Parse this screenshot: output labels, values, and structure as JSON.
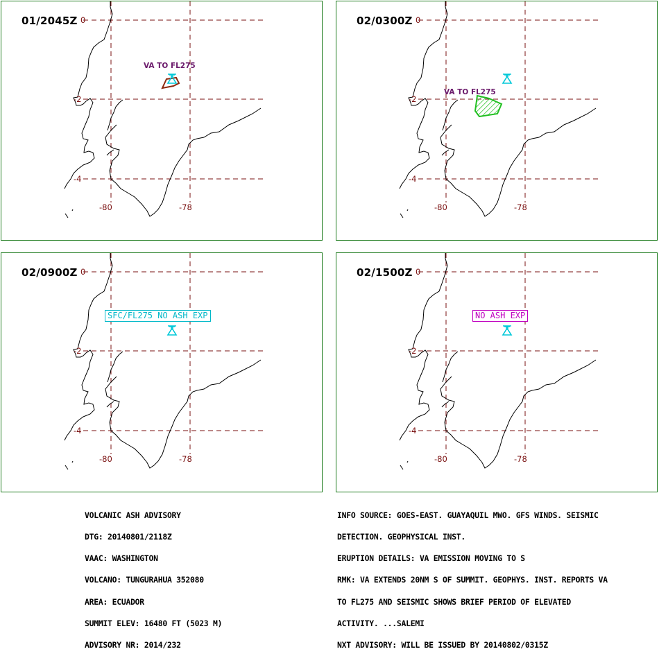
{
  "panels": [
    {
      "title": "01/2045Z",
      "label": "VA TO FL275"
    },
    {
      "title": "02/0300Z",
      "label": "VA TO FL275"
    },
    {
      "title": "02/0900Z",
      "label": "SFC/FL275 NO ASH EXP"
    },
    {
      "title": "02/1500Z",
      "label": "NO ASH EXP"
    }
  ],
  "ticks": {
    "lat0": "0",
    "lat2": "-2",
    "lat4": "-4",
    "lon80": "-80",
    "lon78": "-78"
  },
  "colors": {
    "frame": "#1b7a1b",
    "grid": "#7a1010",
    "volcano": "#00c8d8",
    "ash_obs": "#8b2a10",
    "ash_fcst": "#22c022",
    "label_cyan": "#00b8c8",
    "label_magenta": "#c000c0"
  },
  "advisory_left": [
    "VOLCANIC ASH ADVISORY",
    "DTG: 20140801/2118Z",
    "VAAC: WASHINGTON",
    "VOLCANO: TUNGURAHUA 352080",
    "AREA: ECUADOR",
    "SUMMIT ELEV: 16480 FT (5023 M)",
    "ADVISORY NR: 2014/232"
  ],
  "advisory_right": [
    "INFO SOURCE: GOES-EAST. GUAYAQUIL MWO. GFS WINDS. SEISMIC",
    "DETECTION. GEOPHYSICAL INST.",
    "ERUPTION DETAILS: VA EMISSION MOVING TO S",
    "RMK: VA EXTENDS 20NM S OF SUMMIT. GEOPHYS. INST. REPORTS VA",
    "TO FL275 AND SEISMIC SHOWS BRIEF PERIOD OF ELEVATED",
    "ACTIVITY. ...SALEMI",
    "NXT ADVISORY: WILL BE ISSUED BY 20140802/0315Z"
  ]
}
